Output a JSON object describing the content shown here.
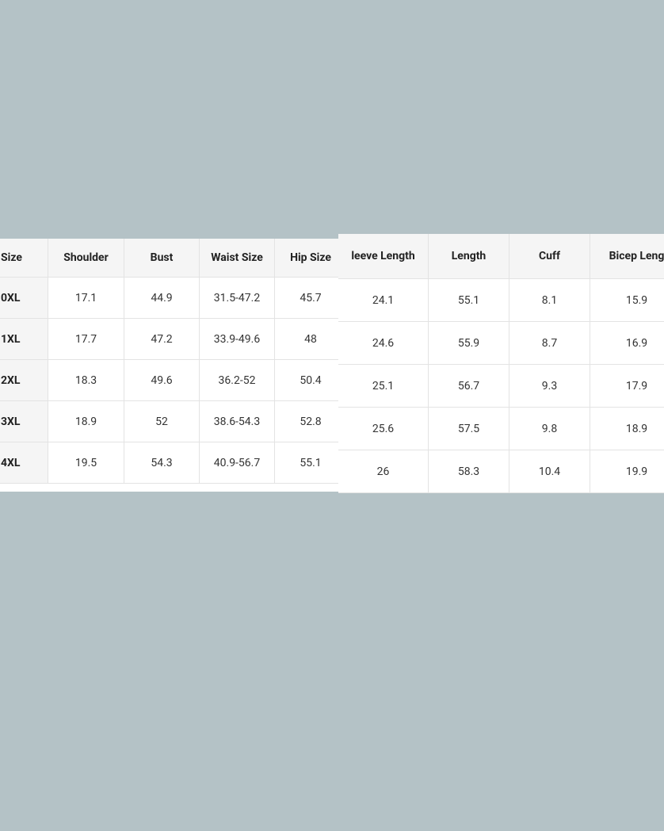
{
  "left_table": {
    "headers": [
      "Size",
      "Shoulder",
      "Bust",
      "Waist Size",
      "Hip Size"
    ],
    "rows": [
      [
        "0XL",
        "17.1",
        "44.9",
        "31.5-47.2",
        "45.7"
      ],
      [
        "1XL",
        "17.7",
        "47.2",
        "33.9-49.6",
        "48"
      ],
      [
        "2XL",
        "18.3",
        "49.6",
        "36.2-52",
        "50.4"
      ],
      [
        "3XL",
        "18.9",
        "52",
        "38.6-54.3",
        "52.8"
      ],
      [
        "4XL",
        "19.5",
        "54.3",
        "40.9-56.7",
        "55.1"
      ]
    ]
  },
  "right_table": {
    "headers": [
      "leeve Length",
      "Length",
      "Cuff",
      "Bicep Leng"
    ],
    "rows": [
      [
        "24.1",
        "55.1",
        "8.1",
        "15.9"
      ],
      [
        "24.6",
        "55.9",
        "8.7",
        "16.9"
      ],
      [
        "25.1",
        "56.7",
        "9.3",
        "17.9"
      ],
      [
        "25.6",
        "57.5",
        "9.8",
        "18.9"
      ],
      [
        "26",
        "58.3",
        "10.4",
        "19.9"
      ]
    ]
  }
}
